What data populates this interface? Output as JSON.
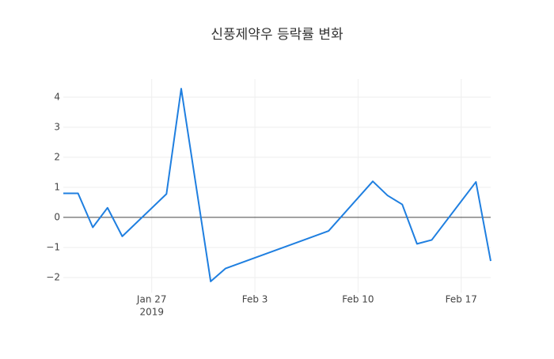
{
  "chart_data": {
    "type": "line",
    "title": "신풍제약우 등락률 변화",
    "x": [
      "2019-01-21",
      "2019-01-22",
      "2019-01-23",
      "2019-01-24",
      "2019-01-25",
      "2019-01-28",
      "2019-01-29",
      "2019-01-31",
      "2019-02-01",
      "2019-02-08",
      "2019-02-11",
      "2019-02-12",
      "2019-02-13",
      "2019-02-14",
      "2019-02-15",
      "2019-02-18",
      "2019-02-19"
    ],
    "series": [
      {
        "name": "등락률",
        "color": "#1f7fe0",
        "values": [
          0.8,
          0.8,
          -0.33,
          0.32,
          -0.63,
          0.78,
          4.28,
          -2.13,
          -1.7,
          -0.45,
          1.2,
          0.73,
          0.43,
          -0.88,
          -0.75,
          1.18,
          -1.45
        ]
      }
    ],
    "xlim": [
      "2019-01-21",
      "2019-02-19"
    ],
    "xticks": [
      {
        "value": "2019-01-27",
        "label": "Jan 27",
        "sublabel": "2019"
      },
      {
        "value": "2019-02-03",
        "label": "Feb 3"
      },
      {
        "value": "2019-02-10",
        "label": "Feb 10"
      },
      {
        "value": "2019-02-17",
        "label": "Feb 17"
      }
    ],
    "ylim": [
      -2.5,
      4.6
    ],
    "yticks": [
      {
        "value": -2,
        "label": "−2"
      },
      {
        "value": -1,
        "label": "−1"
      },
      0,
      1,
      2,
      3,
      4
    ],
    "grid": true,
    "zeroline": true
  }
}
